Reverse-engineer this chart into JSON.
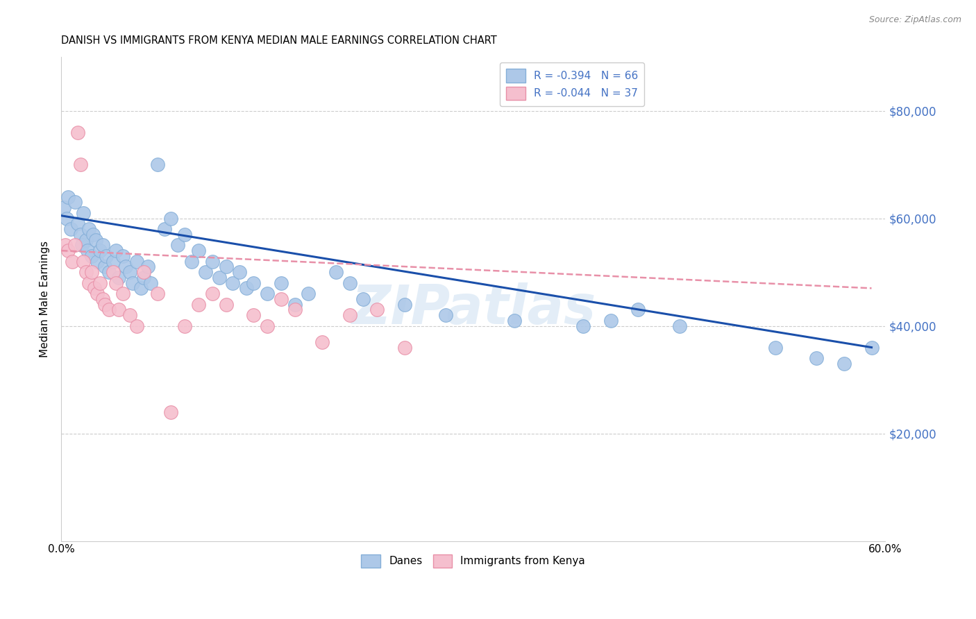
{
  "title": "DANISH VS IMMIGRANTS FROM KENYA MEDIAN MALE EARNINGS CORRELATION CHART",
  "source": "Source: ZipAtlas.com",
  "ylabel": "Median Male Earnings",
  "xlim": [
    0.0,
    0.6
  ],
  "ylim": [
    0,
    90000
  ],
  "yticks": [
    20000,
    40000,
    60000,
    80000
  ],
  "ytick_labels": [
    "$20,000",
    "$40,000",
    "$60,000",
    "$80,000"
  ],
  "xticks": [
    0.0,
    0.1,
    0.2,
    0.3,
    0.4,
    0.5,
    0.6
  ],
  "xtick_labels": [
    "0.0%",
    "",
    "",
    "",
    "",
    "",
    "60.0%"
  ],
  "danes_color": "#adc8e8",
  "danes_edge_color": "#85afd8",
  "kenya_color": "#f5bfce",
  "kenya_edge_color": "#e890a8",
  "danes_line_color": "#1a4faa",
  "kenya_line_color": "#e890a8",
  "axis_color": "#4472c4",
  "legend_R_danes": "R = -0.394   N = 66",
  "legend_R_kenya": "R = -0.044   N = 37",
  "watermark": "ZIPatlas",
  "danes_x": [
    0.002,
    0.004,
    0.005,
    0.007,
    0.01,
    0.012,
    0.014,
    0.015,
    0.016,
    0.018,
    0.019,
    0.02,
    0.022,
    0.023,
    0.025,
    0.026,
    0.028,
    0.03,
    0.032,
    0.033,
    0.035,
    0.038,
    0.04,
    0.042,
    0.045,
    0.047,
    0.05,
    0.052,
    0.055,
    0.058,
    0.06,
    0.063,
    0.065,
    0.07,
    0.075,
    0.08,
    0.085,
    0.09,
    0.095,
    0.1,
    0.105,
    0.11,
    0.115,
    0.12,
    0.125,
    0.13,
    0.135,
    0.14,
    0.15,
    0.16,
    0.17,
    0.18,
    0.2,
    0.21,
    0.22,
    0.25,
    0.28,
    0.33,
    0.38,
    0.4,
    0.42,
    0.45,
    0.52,
    0.55,
    0.57,
    0.59
  ],
  "danes_y": [
    62000,
    60000,
    64000,
    58000,
    63000,
    59000,
    57000,
    55000,
    61000,
    56000,
    54000,
    58000,
    53000,
    57000,
    56000,
    52000,
    54000,
    55000,
    51000,
    53000,
    50000,
    52000,
    54000,
    49000,
    53000,
    51000,
    50000,
    48000,
    52000,
    47000,
    49000,
    51000,
    48000,
    70000,
    58000,
    60000,
    55000,
    57000,
    52000,
    54000,
    50000,
    52000,
    49000,
    51000,
    48000,
    50000,
    47000,
    48000,
    46000,
    48000,
    44000,
    46000,
    50000,
    48000,
    45000,
    44000,
    42000,
    41000,
    40000,
    41000,
    43000,
    40000,
    36000,
    34000,
    33000,
    36000
  ],
  "kenya_x": [
    0.003,
    0.005,
    0.008,
    0.01,
    0.012,
    0.014,
    0.016,
    0.018,
    0.02,
    0.022,
    0.024,
    0.026,
    0.028,
    0.03,
    0.032,
    0.035,
    0.038,
    0.04,
    0.042,
    0.045,
    0.05,
    0.055,
    0.06,
    0.07,
    0.08,
    0.09,
    0.1,
    0.11,
    0.12,
    0.14,
    0.15,
    0.16,
    0.17,
    0.19,
    0.21,
    0.23,
    0.25
  ],
  "kenya_y": [
    55000,
    54000,
    52000,
    55000,
    76000,
    70000,
    52000,
    50000,
    48000,
    50000,
    47000,
    46000,
    48000,
    45000,
    44000,
    43000,
    50000,
    48000,
    43000,
    46000,
    42000,
    40000,
    50000,
    46000,
    24000,
    40000,
    44000,
    46000,
    44000,
    42000,
    40000,
    45000,
    43000,
    37000,
    42000,
    43000,
    36000
  ]
}
